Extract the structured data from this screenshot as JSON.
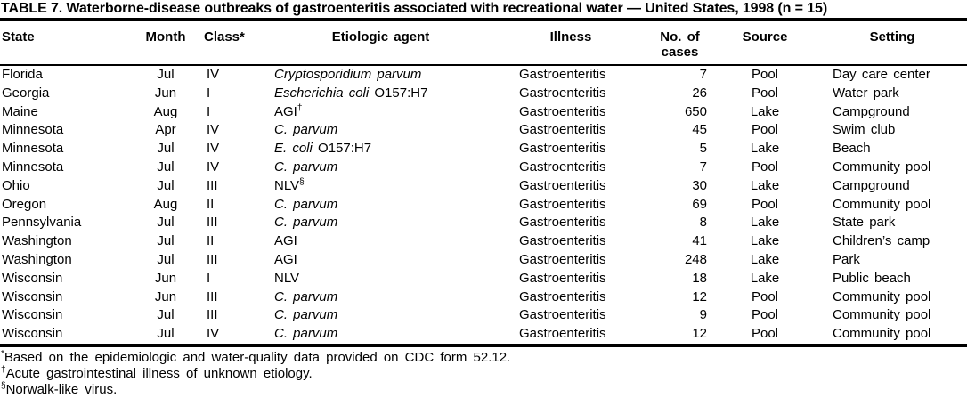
{
  "title": "TABLE 7. Waterborne-disease outbreaks of gastroenteritis associated with recreational water — United States, 1998 (n = 15)",
  "columns": [
    {
      "label": "State"
    },
    {
      "label": "Month"
    },
    {
      "label": "Class*"
    },
    {
      "label": "Etiologic agent"
    },
    {
      "label": "Illness"
    },
    {
      "label": "No. of",
      "label2": "cases"
    },
    {
      "label": "Source"
    },
    {
      "label": "Setting"
    }
  ],
  "rows": [
    {
      "state": "Florida",
      "month": "Jul",
      "class": "IV",
      "agent_italic": "Cryptosporidium parvum",
      "agent_roman": "",
      "agent_sup": "",
      "illness": "Gastroenteritis",
      "cases": "7",
      "source": "Pool",
      "setting": "Day care center"
    },
    {
      "state": "Georgia",
      "month": "Jun",
      "class": "I",
      "agent_italic": "Escherichia coli",
      "agent_roman": "O157:H7",
      "agent_sup": "",
      "illness": "Gastroenteritis",
      "cases": "26",
      "source": "Pool",
      "setting": "Water park"
    },
    {
      "state": "Maine",
      "month": "Aug",
      "class": "I",
      "agent_italic": "",
      "agent_roman": "AGI",
      "agent_sup": "†",
      "illness": "Gastroenteritis",
      "cases": "650",
      "source": "Lake",
      "setting": "Campground"
    },
    {
      "state": "Minnesota",
      "month": "Apr",
      "class": "IV",
      "agent_italic": "C. parvum",
      "agent_roman": "",
      "agent_sup": "",
      "illness": "Gastroenteritis",
      "cases": "45",
      "source": "Pool",
      "setting": "Swim club"
    },
    {
      "state": "Minnesota",
      "month": "Jul",
      "class": "IV",
      "agent_italic": "E. coli",
      "agent_roman": "O157:H7",
      "agent_sup": "",
      "illness": "Gastroenteritis",
      "cases": "5",
      "source": "Lake",
      "setting": "Beach"
    },
    {
      "state": "Minnesota",
      "month": "Jul",
      "class": "IV",
      "agent_italic": "C. parvum",
      "agent_roman": "",
      "agent_sup": "",
      "illness": "Gastroenteritis",
      "cases": "7",
      "source": "Pool",
      "setting": "Community pool"
    },
    {
      "state": "Ohio",
      "month": "Jul",
      "class": "III",
      "agent_italic": "",
      "agent_roman": "NLV",
      "agent_sup": "§",
      "illness": "Gastroenteritis",
      "cases": "30",
      "source": "Lake",
      "setting": "Campground"
    },
    {
      "state": "Oregon",
      "month": "Aug",
      "class": "II",
      "agent_italic": "C. parvum",
      "agent_roman": "",
      "agent_sup": "",
      "illness": "Gastroenteritis",
      "cases": "69",
      "source": "Pool",
      "setting": "Community pool"
    },
    {
      "state": "Pennsylvania",
      "month": "Jul",
      "class": "III",
      "agent_italic": "C. parvum",
      "agent_roman": "",
      "agent_sup": "",
      "illness": "Gastroenteritis",
      "cases": "8",
      "source": "Lake",
      "setting": "State park"
    },
    {
      "state": "Washington",
      "month": "Jul",
      "class": "II",
      "agent_italic": "",
      "agent_roman": "AGI",
      "agent_sup": "",
      "illness": "Gastroenteritis",
      "cases": "41",
      "source": "Lake",
      "setting": "Children’s camp"
    },
    {
      "state": "Washington",
      "month": "Jul",
      "class": "III",
      "agent_italic": "",
      "agent_roman": "AGI",
      "agent_sup": "",
      "illness": "Gastroenteritis",
      "cases": "248",
      "source": "Lake",
      "setting": "Park"
    },
    {
      "state": "Wisconsin",
      "month": "Jun",
      "class": "I",
      "agent_italic": "",
      "agent_roman": "NLV",
      "agent_sup": "",
      "illness": "Gastroenteritis",
      "cases": "18",
      "source": "Lake",
      "setting": "Public beach"
    },
    {
      "state": "Wisconsin",
      "month": "Jun",
      "class": "III",
      "agent_italic": "C. parvum",
      "agent_roman": "",
      "agent_sup": "",
      "illness": "Gastroenteritis",
      "cases": "12",
      "source": "Pool",
      "setting": "Community pool"
    },
    {
      "state": "Wisconsin",
      "month": "Jul",
      "class": "III",
      "agent_italic": "C. parvum",
      "agent_roman": "",
      "agent_sup": "",
      "illness": "Gastroenteritis",
      "cases": "9",
      "source": "Pool",
      "setting": "Community pool"
    },
    {
      "state": "Wisconsin",
      "month": "Jul",
      "class": "IV",
      "agent_italic": "C. parvum",
      "agent_roman": "",
      "agent_sup": "",
      "illness": "Gastroenteritis",
      "cases": "12",
      "source": "Pool",
      "setting": "Community pool"
    }
  ],
  "footnotes": [
    {
      "marker": "*",
      "text": "Based on the epidemiologic and water-quality data provided on CDC form 52.12."
    },
    {
      "marker": "†",
      "text": "Acute gastrointestinal illness of unknown etiology."
    },
    {
      "marker": "§",
      "text": "Norwalk-like virus."
    }
  ],
  "colors": {
    "text": "#000000",
    "background": "#ffffff",
    "rule": "#000000"
  }
}
